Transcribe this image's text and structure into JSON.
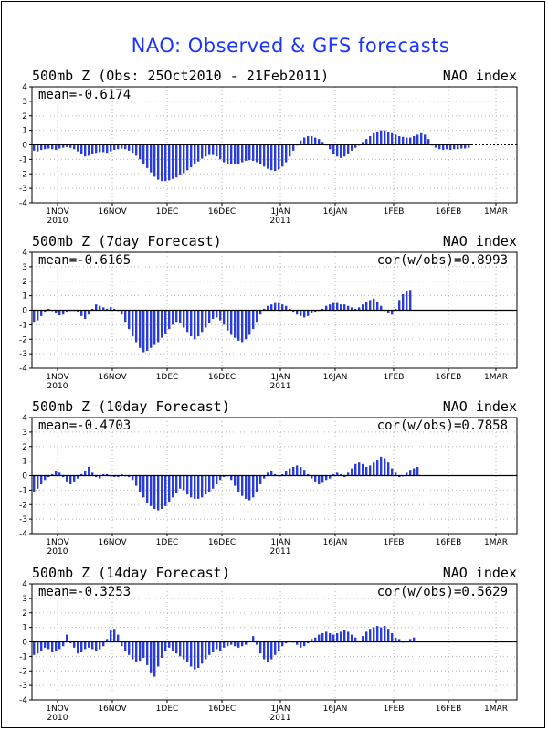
{
  "title": "NAO: Observed & GFS forecasts",
  "colors": {
    "title": "#1a33ff",
    "bar": "#2a3dd9",
    "frame": "#000000",
    "grid": "#b5b5b5"
  },
  "chart_data": [
    {
      "type": "bar",
      "title": "500mb Z (Obs: 25Oct2010 - 21Feb2011)",
      "right_label": "NAO index",
      "annotation_left": "mean=-0.6174",
      "annotation_right": "",
      "ylim": [
        -4,
        4
      ],
      "yticks": [
        "4",
        "3",
        "2",
        "1",
        "0",
        "-1",
        "-2",
        "-3",
        "-4"
      ],
      "xticks": [
        "1NOV",
        "16NOV",
        "1DEC",
        "16DEC",
        "1JAN",
        "16JAN",
        "1FEB",
        "16FEB",
        "1MAR"
      ],
      "xticks_sub": [
        "2010",
        "",
        "",
        "",
        "2011",
        "",
        "",
        "",
        ""
      ],
      "grid": "dotted",
      "start_date": "25Oct2010",
      "values": [
        -0.4,
        -0.45,
        -0.35,
        -0.3,
        -0.25,
        -0.3,
        -0.35,
        -0.25,
        -0.2,
        -0.15,
        -0.2,
        -0.3,
        -0.45,
        -0.6,
        -0.8,
        -0.75,
        -0.6,
        -0.55,
        -0.5,
        -0.5,
        -0.55,
        -0.45,
        -0.35,
        -0.3,
        -0.25,
        -0.3,
        -0.4,
        -0.55,
        -0.75,
        -1.0,
        -1.3,
        -1.6,
        -1.9,
        -2.2,
        -2.4,
        -2.5,
        -2.5,
        -2.45,
        -2.35,
        -2.25,
        -2.1,
        -1.95,
        -1.75,
        -1.55,
        -1.35,
        -1.15,
        -0.95,
        -0.8,
        -0.7,
        -0.7,
        -0.8,
        -1.0,
        -1.2,
        -1.3,
        -1.35,
        -1.35,
        -1.3,
        -1.2,
        -1.1,
        -1.05,
        -1.1,
        -1.2,
        -1.35,
        -1.5,
        -1.65,
        -1.75,
        -1.8,
        -1.7,
        -1.5,
        -1.2,
        -0.8,
        -0.4,
        0.0,
        0.3,
        0.5,
        0.6,
        0.6,
        0.5,
        0.4,
        0.2,
        0.0,
        -0.3,
        -0.6,
        -0.8,
        -0.9,
        -0.8,
        -0.6,
        -0.4,
        -0.2,
        0.0,
        0.2,
        0.4,
        0.6,
        0.8,
        0.9,
        1.0,
        1.0,
        0.9,
        0.8,
        0.7,
        0.6,
        0.55,
        0.5,
        0.5,
        0.6,
        0.7,
        0.8,
        0.7,
        0.4,
        0.0,
        -0.2,
        -0.3,
        -0.35,
        -0.3,
        -0.35,
        -0.3,
        -0.3,
        -0.25,
        -0.25,
        -0.2
      ]
    },
    {
      "type": "bar",
      "title": "500mb Z (7day Forecast)",
      "right_label": "NAO index",
      "annotation_left": "mean=-0.6165",
      "annotation_right": "cor(w/obs)=0.8993",
      "ylim": [
        -4,
        4
      ],
      "yticks": [
        "4",
        "3",
        "2",
        "1",
        "0",
        "-1",
        "-2",
        "-3",
        "-4"
      ],
      "xticks": [
        "1NOV",
        "16NOV",
        "1DEC",
        "16DEC",
        "1JAN",
        "16JAN",
        "1FEB",
        "16FEB",
        "1MAR"
      ],
      "xticks_sub": [
        "2010",
        "",
        "",
        "",
        "2011",
        "",
        "",
        "",
        ""
      ],
      "grid": "dotted",
      "start_date": "25Oct2010",
      "values": [
        -0.8,
        -0.7,
        -0.4,
        -0.1,
        0.1,
        0.0,
        -0.2,
        -0.35,
        -0.3,
        -0.1,
        0.0,
        0.0,
        -0.1,
        -0.4,
        -0.6,
        -0.3,
        0.1,
        0.4,
        0.3,
        0.2,
        0.1,
        0.2,
        0.1,
        0.0,
        -0.3,
        -0.8,
        -1.3,
        -1.8,
        -2.2,
        -2.6,
        -2.9,
        -2.8,
        -2.6,
        -2.4,
        -2.2,
        -1.9,
        -1.6,
        -1.3,
        -1.0,
        -0.8,
        -0.9,
        -1.2,
        -1.5,
        -1.8,
        -2.0,
        -1.8,
        -1.5,
        -1.2,
        -0.9,
        -0.6,
        -0.5,
        -0.7,
        -1.0,
        -1.4,
        -1.7,
        -1.9,
        -2.1,
        -2.2,
        -2.0,
        -1.7,
        -1.3,
        -0.8,
        -0.3,
        0.1,
        0.3,
        0.4,
        0.5,
        0.5,
        0.4,
        0.3,
        0.1,
        -0.1,
        -0.3,
        -0.4,
        -0.5,
        -0.4,
        -0.2,
        -0.1,
        0.0,
        0.1,
        0.3,
        0.4,
        0.5,
        0.5,
        0.4,
        0.4,
        0.3,
        0.2,
        0.1,
        0.2,
        0.4,
        0.6,
        0.7,
        0.8,
        0.6,
        0.3,
        0.0,
        -0.2,
        -0.3,
        0.1,
        0.7,
        1.1,
        1.3,
        1.4
      ]
    },
    {
      "type": "bar",
      "title": "500mb Z (10day Forecast)",
      "right_label": "NAO index",
      "annotation_left": "mean=-0.4703",
      "annotation_right": "cor(w/obs)=0.7858",
      "ylim": [
        -4,
        4
      ],
      "yticks": [
        "4",
        "3",
        "2",
        "1",
        "0",
        "-1",
        "-2",
        "-3",
        "-4"
      ],
      "xticks": [
        "1NOV",
        "16NOV",
        "1DEC",
        "16DEC",
        "1JAN",
        "16JAN",
        "1FEB",
        "16FEB",
        "1MAR"
      ],
      "xticks_sub": [
        "2010",
        "",
        "",
        "",
        "2011",
        "",
        "",
        "",
        ""
      ],
      "grid": "dotted",
      "start_date": "25Oct2010",
      "values": [
        -1.1,
        -0.9,
        -0.6,
        -0.3,
        -0.1,
        0.1,
        0.3,
        0.2,
        -0.1,
        -0.4,
        -0.6,
        -0.4,
        -0.2,
        0.1,
        0.3,
        0.6,
        0.2,
        -0.1,
        -0.2,
        0.1,
        0.1,
        0.0,
        -0.1,
        -0.1,
        0.1,
        0.0,
        -0.1,
        -0.3,
        -0.7,
        -1.1,
        -1.5,
        -1.9,
        -2.1,
        -2.3,
        -2.4,
        -2.3,
        -2.1,
        -1.8,
        -1.5,
        -1.2,
        -0.9,
        -1.0,
        -1.3,
        -1.5,
        -1.6,
        -1.6,
        -1.5,
        -1.3,
        -1.1,
        -0.9,
        -0.6,
        -0.3,
        -0.1,
        0.0,
        -0.3,
        -0.7,
        -1.1,
        -1.4,
        -1.6,
        -1.7,
        -1.5,
        -1.1,
        -0.6,
        -0.2,
        0.2,
        0.3,
        0.1,
        0.0,
        0.1,
        0.3,
        0.5,
        0.6,
        0.7,
        0.6,
        0.4,
        0.1,
        -0.2,
        -0.4,
        -0.6,
        -0.5,
        -0.3,
        -0.2,
        0.1,
        0.2,
        0.1,
        -0.1,
        0.2,
        0.5,
        0.8,
        0.9,
        0.8,
        0.6,
        0.7,
        0.9,
        1.1,
        1.3,
        1.2,
        0.9,
        0.5,
        0.2,
        -0.1,
        0.0,
        0.2,
        0.4,
        0.5,
        0.6
      ]
    },
    {
      "type": "bar",
      "title": "500mb Z (14day Forecast)",
      "right_label": "NAO index",
      "annotation_left": "mean=-0.3253",
      "annotation_right": "cor(w/obs)=0.5629",
      "ylim": [
        -4,
        4
      ],
      "yticks": [
        "4",
        "3",
        "2",
        "1",
        "0",
        "-1",
        "-2",
        "-3",
        "-4"
      ],
      "xticks": [
        "1NOV",
        "16NOV",
        "1DEC",
        "16DEC",
        "1JAN",
        "16JAN",
        "1FEB",
        "16FEB",
        "1MAR"
      ],
      "xticks_sub": [
        "2010",
        "",
        "",
        "",
        "2011",
        "",
        "",
        "",
        ""
      ],
      "grid": "dotted",
      "start_date": "25Oct2010",
      "values": [
        -0.9,
        -0.8,
        -0.6,
        -0.4,
        -0.5,
        -0.7,
        -0.6,
        -0.5,
        -0.3,
        0.5,
        -0.1,
        -0.4,
        -0.8,
        -0.7,
        -0.5,
        -0.4,
        -0.5,
        -0.6,
        -0.5,
        -0.3,
        0.2,
        0.8,
        0.9,
        0.5,
        -0.3,
        -0.6,
        -0.9,
        -1.2,
        -1.4,
        -1.3,
        -1.1,
        -1.6,
        -2.1,
        -2.4,
        -1.7,
        -1.1,
        -0.6,
        -0.4,
        -0.6,
        -0.8,
        -1.0,
        -1.2,
        -1.4,
        -1.7,
        -1.9,
        -1.8,
        -1.5,
        -1.2,
        -0.9,
        -0.7,
        -0.5,
        -0.6,
        -0.4,
        -0.3,
        -0.2,
        -0.3,
        -0.4,
        -0.3,
        -0.2,
        0.1,
        0.4,
        -0.2,
        -0.8,
        -1.2,
        -1.4,
        -1.2,
        -0.9,
        -0.6,
        -0.3,
        -0.1,
        0.1,
        0.0,
        -0.2,
        -0.4,
        -0.3,
        -0.1,
        0.2,
        0.3,
        0.5,
        0.6,
        0.7,
        0.6,
        0.5,
        0.6,
        0.7,
        0.8,
        0.7,
        0.5,
        0.3,
        0.1,
        0.4,
        0.7,
        0.9,
        1.0,
        1.1,
        1.0,
        1.1,
        0.9,
        0.6,
        0.3,
        0.2,
        0.0,
        0.1,
        0.2,
        0.3
      ]
    }
  ]
}
